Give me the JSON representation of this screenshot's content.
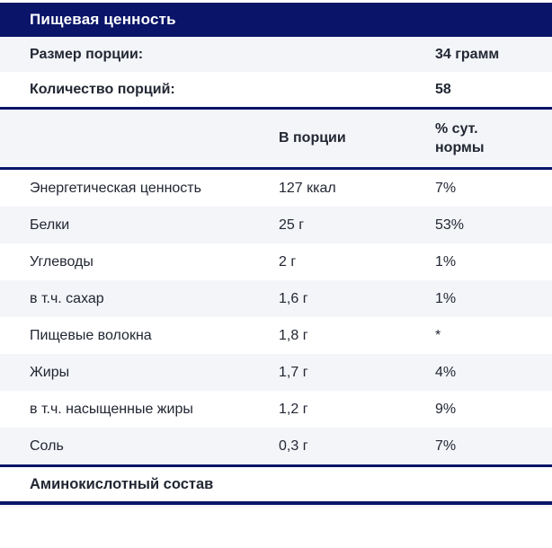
{
  "title": "Пищевая ценность",
  "meta": [
    {
      "label": "Размер порции:",
      "value": "34 грамм"
    },
    {
      "label": "Количество порций:",
      "value": "58"
    }
  ],
  "columns": {
    "portion": "В порции",
    "daily": "% сут. нормы"
  },
  "rows": [
    {
      "label": "Энергетическая ценность",
      "portion": "127 ккал",
      "daily": "7%"
    },
    {
      "label": "Белки",
      "portion": "25 г",
      "daily": "53%"
    },
    {
      "label": "Углеводы",
      "portion": "2 г",
      "daily": "1%"
    },
    {
      "label": "в т.ч. сахар",
      "portion": "1,6 г",
      "daily": "1%"
    },
    {
      "label": "Пищевые волокна",
      "portion": "1,8 г",
      "daily": "*"
    },
    {
      "label": "Жиры",
      "portion": "1,7 г",
      "daily": "4%"
    },
    {
      "label": "в т.ч. насыщенные жиры",
      "portion": "1,2 г",
      "daily": "9%"
    },
    {
      "label": "Соль",
      "portion": "0,3 г",
      "daily": "7%"
    }
  ],
  "section_footer": "Аминокислотный состав",
  "colors": {
    "accent": "#0a1468",
    "row_alt": "#f4f5f9",
    "text": "#222733",
    "title_text": "#ffffff"
  }
}
